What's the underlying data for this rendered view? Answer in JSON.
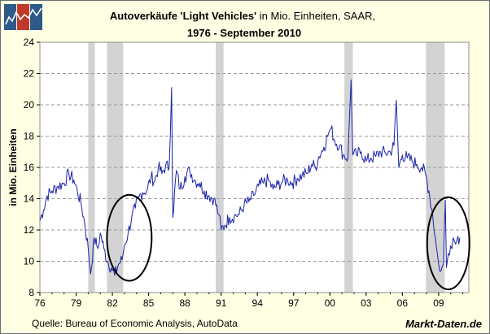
{
  "chart_data": {
    "type": "line",
    "title_bold": "Autoverkäufe 'Light Vehicles'",
    "title_rest": " in Mio. Einheiten, SAAR,",
    "subtitle": "1976 - September 2010",
    "ylabel": "in Mio. Einheiten",
    "xlabel": "",
    "ylim": [
      8,
      24
    ],
    "xlim": [
      1976,
      2011.5
    ],
    "yticks": [
      8,
      10,
      12,
      14,
      16,
      18,
      20,
      22,
      24
    ],
    "xticks": [
      {
        "value": 1976,
        "label": "76"
      },
      {
        "value": 1979,
        "label": "79"
      },
      {
        "value": 1982,
        "label": "82"
      },
      {
        "value": 1985,
        "label": "85"
      },
      {
        "value": 1988,
        "label": "88"
      },
      {
        "value": 1991,
        "label": "91"
      },
      {
        "value": 1994,
        "label": "94"
      },
      {
        "value": 1997,
        "label": "97"
      },
      {
        "value": 2000,
        "label": "00"
      },
      {
        "value": 2003,
        "label": "03"
      },
      {
        "value": 2006,
        "label": "06"
      },
      {
        "value": 2009,
        "label": "09"
      }
    ],
    "grid": "horizontal dashed",
    "recessions": [
      [
        1980.0,
        1980.55
      ],
      [
        1981.55,
        1982.9
      ],
      [
        1990.55,
        1991.2
      ],
      [
        2001.2,
        2001.9
      ],
      [
        2007.95,
        2009.5
      ]
    ],
    "highlights": [
      {
        "label": "1982-1984 recovery",
        "cx": 1983.4,
        "cy": 11.5,
        "rx": 1.85,
        "ry": 2.75
      },
      {
        "label": "2009-2010 recovery",
        "cx": 2009.8,
        "cy": 11.15,
        "rx": 1.75,
        "ry": 2.95
      }
    ],
    "series": [
      {
        "name": "Light Vehicle Sales (SAAR)",
        "color": "#1a22a8",
        "anchors": [
          [
            1976.0,
            12.6
          ],
          [
            1976.3,
            13.3
          ],
          [
            1976.6,
            14.2
          ],
          [
            1977.0,
            14.5
          ],
          [
            1977.5,
            14.8
          ],
          [
            1978.0,
            15.0
          ],
          [
            1978.4,
            15.6
          ],
          [
            1978.8,
            15.2
          ],
          [
            1979.1,
            14.5
          ],
          [
            1979.4,
            13.7
          ],
          [
            1979.7,
            12.5
          ],
          [
            1980.0,
            10.8
          ],
          [
            1980.2,
            9.2
          ],
          [
            1980.5,
            11.5
          ],
          [
            1980.8,
            10.8
          ],
          [
            1981.0,
            11.8
          ],
          [
            1981.3,
            10.8
          ],
          [
            1981.6,
            10.0
          ],
          [
            1981.9,
            9.6
          ],
          [
            1982.2,
            9.1
          ],
          [
            1982.5,
            9.8
          ],
          [
            1982.8,
            10.1
          ],
          [
            1983.0,
            11.0
          ],
          [
            1983.3,
            11.8
          ],
          [
            1983.6,
            12.8
          ],
          [
            1983.9,
            13.4
          ],
          [
            1984.2,
            14.1
          ],
          [
            1984.5,
            14.4
          ],
          [
            1984.9,
            14.6
          ],
          [
            1985.2,
            15.4
          ],
          [
            1985.5,
            15.1
          ],
          [
            1985.8,
            16.0
          ],
          [
            1986.1,
            15.6
          ],
          [
            1986.4,
            16.1
          ],
          [
            1986.7,
            16.0
          ],
          [
            1986.9,
            21.1
          ],
          [
            1987.0,
            12.8
          ],
          [
            1987.3,
            15.8
          ],
          [
            1987.6,
            14.6
          ],
          [
            1988.0,
            15.4
          ],
          [
            1988.4,
            15.8
          ],
          [
            1988.8,
            15.2
          ],
          [
            1989.2,
            15.0
          ],
          [
            1989.6,
            14.5
          ],
          [
            1990.0,
            14.2
          ],
          [
            1990.4,
            14.0
          ],
          [
            1990.8,
            13.0
          ],
          [
            1991.0,
            12.0
          ],
          [
            1991.3,
            12.3
          ],
          [
            1991.7,
            12.8
          ],
          [
            1992.1,
            12.9
          ],
          [
            1992.5,
            13.0
          ],
          [
            1992.9,
            13.6
          ],
          [
            1993.3,
            13.8
          ],
          [
            1993.7,
            14.2
          ],
          [
            1994.1,
            14.8
          ],
          [
            1994.5,
            15.0
          ],
          [
            1994.9,
            15.2
          ],
          [
            1995.3,
            14.6
          ],
          [
            1995.7,
            14.9
          ],
          [
            1996.1,
            15.1
          ],
          [
            1996.5,
            15.2
          ],
          [
            1996.9,
            15.0
          ],
          [
            1997.3,
            15.3
          ],
          [
            1997.7,
            15.5
          ],
          [
            1998.1,
            15.6
          ],
          [
            1998.5,
            16.2
          ],
          [
            1998.8,
            16.0
          ],
          [
            1999.1,
            16.7
          ],
          [
            1999.5,
            17.3
          ],
          [
            1999.9,
            18.2
          ],
          [
            2000.1,
            18.5
          ],
          [
            2000.4,
            17.7
          ],
          [
            2000.8,
            17.4
          ],
          [
            2001.1,
            16.8
          ],
          [
            2001.5,
            16.6
          ],
          [
            2001.75,
            21.6
          ],
          [
            2001.9,
            16.8
          ],
          [
            2002.2,
            16.8
          ],
          [
            2002.6,
            17.0
          ],
          [
            2003.0,
            16.4
          ],
          [
            2003.4,
            16.6
          ],
          [
            2003.8,
            16.7
          ],
          [
            2004.2,
            17.0
          ],
          [
            2004.6,
            16.9
          ],
          [
            2005.0,
            17.0
          ],
          [
            2005.3,
            17.4
          ],
          [
            2005.5,
            20.3
          ],
          [
            2005.7,
            16.0
          ],
          [
            2006.0,
            16.8
          ],
          [
            2006.4,
            16.6
          ],
          [
            2006.8,
            16.4
          ],
          [
            2007.2,
            16.2
          ],
          [
            2007.6,
            16.0
          ],
          [
            2007.9,
            15.6
          ],
          [
            2008.2,
            14.5
          ],
          [
            2008.5,
            13.0
          ],
          [
            2008.8,
            11.0
          ],
          [
            2009.0,
            9.8
          ],
          [
            2009.2,
            9.4
          ],
          [
            2009.4,
            9.8
          ],
          [
            2009.55,
            13.9
          ],
          [
            2009.65,
            9.6
          ],
          [
            2009.8,
            10.5
          ],
          [
            2010.0,
            11.0
          ],
          [
            2010.2,
            11.5
          ],
          [
            2010.4,
            11.1
          ],
          [
            2010.6,
            11.6
          ],
          [
            2010.75,
            11.5
          ]
        ]
      }
    ]
  },
  "footer": {
    "source": "Quelle: Bureau of Economic Analysis, AutoData",
    "brand": "Markt-Daten.de"
  },
  "logo": {
    "colors": [
      "#2e5a8a",
      "#c0392b",
      "#2e5a8a"
    ],
    "icon": "line-chart-logo-icon"
  }
}
